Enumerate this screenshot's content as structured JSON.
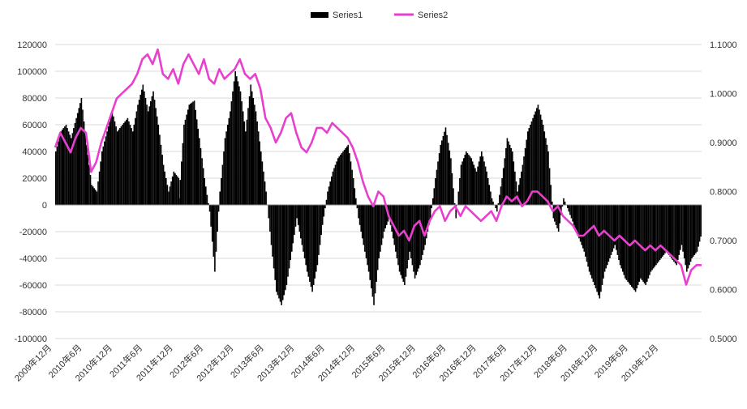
{
  "chart_data": {
    "type": "bar+line",
    "title": "",
    "legend": {
      "position": "top-center",
      "items": [
        {
          "name": "Series1",
          "kind": "bar",
          "color": "#000000"
        },
        {
          "name": "Series2",
          "kind": "line",
          "color": "#e83fce"
        }
      ]
    },
    "x_tick_labels": [
      "2009年12月",
      "2010年6月",
      "2010年12月",
      "2011年6月",
      "2011年12月",
      "2012年6月",
      "2012年12月",
      "2013年6月",
      "2013年12月",
      "2014年6月",
      "2014年12月",
      "2015年6月",
      "2015年12月",
      "2016年6月",
      "2016年12月",
      "2017年6月",
      "2017年12月",
      "2018年6月",
      "2018年12月",
      "2019年6月",
      "2019年12月"
    ],
    "x_range": [
      "2009-12",
      "2020-06"
    ],
    "y_left": {
      "min": -100000,
      "max": 120000,
      "step": 20000,
      "ticks": [
        "120000",
        "100000",
        "80000",
        "60000",
        "40000",
        "20000",
        "0",
        "-20000",
        "-40000",
        "-60000",
        "-80000",
        "-100000"
      ]
    },
    "y_right": {
      "min": 0.5,
      "max": 1.1,
      "step": 0.1,
      "ticks": [
        "1.1000",
        "1.0000",
        "0.9000",
        "0.8000",
        "0.7000",
        "0.6000",
        "0.5000"
      ]
    },
    "grid": true,
    "series": [
      {
        "name": "Series1",
        "axis": "left",
        "type": "bar",
        "color": "#000000",
        "points": [
          [
            "2009-12",
            40000
          ],
          [
            "2010-01",
            55000
          ],
          [
            "2010-02",
            60000
          ],
          [
            "2010-03",
            50000
          ],
          [
            "2010-04",
            65000
          ],
          [
            "2010-05",
            80000
          ],
          [
            "2010-06",
            45000
          ],
          [
            "2010-07",
            15000
          ],
          [
            "2010-08",
            10000
          ],
          [
            "2010-09",
            40000
          ],
          [
            "2010-10",
            55000
          ],
          [
            "2010-11",
            70000
          ],
          [
            "2010-12",
            55000
          ],
          [
            "2011-01",
            60000
          ],
          [
            "2011-02",
            65000
          ],
          [
            "2011-03",
            55000
          ],
          [
            "2011-04",
            75000
          ],
          [
            "2011-05",
            90000
          ],
          [
            "2011-06",
            70000
          ],
          [
            "2011-07",
            85000
          ],
          [
            "2011-08",
            60000
          ],
          [
            "2011-09",
            30000
          ],
          [
            "2011-10",
            10000
          ],
          [
            "2011-11",
            25000
          ],
          [
            "2011-12",
            20000
          ],
          [
            "2011-12",
            5000
          ],
          [
            "2012-01",
            60000
          ],
          [
            "2012-02",
            75000
          ],
          [
            "2012-03",
            78000
          ],
          [
            "2012-04",
            50000
          ],
          [
            "2012-05",
            20000
          ],
          [
            "2012-06",
            -5000
          ],
          [
            "2012-07",
            -50000
          ],
          [
            "2012-08",
            10000
          ],
          [
            "2012-09",
            50000
          ],
          [
            "2012-10",
            70000
          ],
          [
            "2012-11",
            100000
          ],
          [
            "2012-12",
            85000
          ],
          [
            "2013-01",
            55000
          ],
          [
            "2013-02",
            90000
          ],
          [
            "2013-03",
            70000
          ],
          [
            "2013-04",
            40000
          ],
          [
            "2013-05",
            10000
          ],
          [
            "2013-06",
            -30000
          ],
          [
            "2013-07",
            -65000
          ],
          [
            "2013-08",
            -75000
          ],
          [
            "2013-09",
            -60000
          ],
          [
            "2013-10",
            -35000
          ],
          [
            "2013-11",
            -10000
          ],
          [
            "2013-12",
            -30000
          ],
          [
            "2014-01",
            -50000
          ],
          [
            "2014-02",
            -65000
          ],
          [
            "2014-03",
            -45000
          ],
          [
            "2014-04",
            -15000
          ],
          [
            "2014-05",
            10000
          ],
          [
            "2014-06",
            25000
          ],
          [
            "2014-07",
            35000
          ],
          [
            "2014-08",
            40000
          ],
          [
            "2014-09",
            45000
          ],
          [
            "2014-10",
            20000
          ],
          [
            "2014-11",
            -10000
          ],
          [
            "2014-12",
            -30000
          ],
          [
            "2015-01",
            -50000
          ],
          [
            "2015-02",
            -75000
          ],
          [
            "2015-03",
            -40000
          ],
          [
            "2015-04",
            -20000
          ],
          [
            "2015-05",
            -10000
          ],
          [
            "2015-06",
            -30000
          ],
          [
            "2015-07",
            -50000
          ],
          [
            "2015-08",
            -60000
          ],
          [
            "2015-09",
            -35000
          ],
          [
            "2015-10",
            -55000
          ],
          [
            "2015-11",
            -45000
          ],
          [
            "2015-12",
            -30000
          ],
          [
            "2016-01",
            -10000
          ],
          [
            "2016-02",
            20000
          ],
          [
            "2016-03",
            45000
          ],
          [
            "2016-04",
            58000
          ],
          [
            "2016-05",
            35000
          ],
          [
            "2016-06",
            -10000
          ],
          [
            "2016-07",
            30000
          ],
          [
            "2016-08",
            40000
          ],
          [
            "2016-09",
            35000
          ],
          [
            "2016-10",
            25000
          ],
          [
            "2016-11",
            40000
          ],
          [
            "2016-12",
            25000
          ],
          [
            "2017-01",
            5000
          ],
          [
            "2017-02",
            -5000
          ],
          [
            "2017-03",
            20000
          ],
          [
            "2017-04",
            50000
          ],
          [
            "2017-05",
            40000
          ],
          [
            "2017-06",
            10000
          ],
          [
            "2017-07",
            30000
          ],
          [
            "2017-08",
            55000
          ],
          [
            "2017-09",
            65000
          ],
          [
            "2017-10",
            75000
          ],
          [
            "2017-11",
            60000
          ],
          [
            "2017-12",
            40000
          ],
          [
            "2018-01",
            -10000
          ],
          [
            "2018-02",
            -20000
          ],
          [
            "2018-03",
            5000
          ],
          [
            "2018-04",
            -5000
          ],
          [
            "2018-05",
            -15000
          ],
          [
            "2018-06",
            -25000
          ],
          [
            "2018-07",
            -35000
          ],
          [
            "2018-08",
            -50000
          ],
          [
            "2018-09",
            -60000
          ],
          [
            "2018-10",
            -70000
          ],
          [
            "2018-11",
            -50000
          ],
          [
            "2018-12",
            -40000
          ],
          [
            "2019-01",
            -30000
          ],
          [
            "2019-02",
            -45000
          ],
          [
            "2019-03",
            -55000
          ],
          [
            "2019-04",
            -60000
          ],
          [
            "2019-05",
            -65000
          ],
          [
            "2019-06",
            -55000
          ],
          [
            "2019-07",
            -60000
          ],
          [
            "2019-08",
            -50000
          ],
          [
            "2019-09",
            -45000
          ],
          [
            "2019-10",
            -40000
          ],
          [
            "2019-11",
            -35000
          ],
          [
            "2019-12",
            -40000
          ],
          [
            "2020-01",
            -45000
          ],
          [
            "2020-02",
            -30000
          ],
          [
            "2020-03",
            -50000
          ],
          [
            "2020-04",
            -40000
          ],
          [
            "2020-05",
            -35000
          ],
          [
            "2020-06",
            -20000
          ]
        ]
      },
      {
        "name": "Series2",
        "axis": "right",
        "type": "line",
        "color": "#e83fce",
        "points": [
          [
            "2009-12",
            0.89
          ],
          [
            "2010-01",
            0.92
          ],
          [
            "2010-02",
            0.9
          ],
          [
            "2010-03",
            0.88
          ],
          [
            "2010-04",
            0.91
          ],
          [
            "2010-05",
            0.93
          ],
          [
            "2010-06",
            0.92
          ],
          [
            "2010-07",
            0.84
          ],
          [
            "2010-08",
            0.86
          ],
          [
            "2010-09",
            0.9
          ],
          [
            "2010-10",
            0.93
          ],
          [
            "2010-11",
            0.96
          ],
          [
            "2010-12",
            0.99
          ],
          [
            "2011-01",
            1.0
          ],
          [
            "2011-02",
            1.01
          ],
          [
            "2011-03",
            1.02
          ],
          [
            "2011-04",
            1.04
          ],
          [
            "2011-05",
            1.07
          ],
          [
            "2011-06",
            1.08
          ],
          [
            "2011-07",
            1.06
          ],
          [
            "2011-08",
            1.09
          ],
          [
            "2011-09",
            1.04
          ],
          [
            "2011-10",
            1.03
          ],
          [
            "2011-11",
            1.05
          ],
          [
            "2011-12",
            1.02
          ],
          [
            "2012-01",
            1.06
          ],
          [
            "2012-02",
            1.08
          ],
          [
            "2012-03",
            1.06
          ],
          [
            "2012-04",
            1.04
          ],
          [
            "2012-05",
            1.07
          ],
          [
            "2012-06",
            1.03
          ],
          [
            "2012-07",
            1.02
          ],
          [
            "2012-08",
            1.05
          ],
          [
            "2012-09",
            1.03
          ],
          [
            "2012-10",
            1.04
          ],
          [
            "2012-11",
            1.05
          ],
          [
            "2012-12",
            1.07
          ],
          [
            "2013-01",
            1.04
          ],
          [
            "2013-02",
            1.03
          ],
          [
            "2013-03",
            1.04
          ],
          [
            "2013-04",
            1.01
          ],
          [
            "2013-05",
            0.95
          ],
          [
            "2013-06",
            0.93
          ],
          [
            "2013-07",
            0.9
          ],
          [
            "2013-08",
            0.92
          ],
          [
            "2013-09",
            0.95
          ],
          [
            "2013-10",
            0.96
          ],
          [
            "2013-11",
            0.92
          ],
          [
            "2013-12",
            0.89
          ],
          [
            "2014-01",
            0.88
          ],
          [
            "2014-02",
            0.9
          ],
          [
            "2014-03",
            0.93
          ],
          [
            "2014-04",
            0.93
          ],
          [
            "2014-05",
            0.92
          ],
          [
            "2014-06",
            0.94
          ],
          [
            "2014-07",
            0.93
          ],
          [
            "2014-08",
            0.92
          ],
          [
            "2014-09",
            0.91
          ],
          [
            "2014-10",
            0.89
          ],
          [
            "2014-11",
            0.86
          ],
          [
            "2014-12",
            0.82
          ],
          [
            "2015-01",
            0.79
          ],
          [
            "2015-02",
            0.77
          ],
          [
            "2015-03",
            0.8
          ],
          [
            "2015-04",
            0.79
          ],
          [
            "2015-05",
            0.75
          ],
          [
            "2015-06",
            0.73
          ],
          [
            "2015-07",
            0.71
          ],
          [
            "2015-08",
            0.72
          ],
          [
            "2015-09",
            0.7
          ],
          [
            "2015-10",
            0.73
          ],
          [
            "2015-11",
            0.74
          ],
          [
            "2015-12",
            0.71
          ],
          [
            "2016-01",
            0.74
          ],
          [
            "2016-02",
            0.76
          ],
          [
            "2016-03",
            0.77
          ],
          [
            "2016-04",
            0.74
          ],
          [
            "2016-05",
            0.76
          ],
          [
            "2016-06",
            0.77
          ],
          [
            "2016-07",
            0.75
          ],
          [
            "2016-08",
            0.77
          ],
          [
            "2016-09",
            0.76
          ],
          [
            "2016-10",
            0.75
          ],
          [
            "2016-11",
            0.74
          ],
          [
            "2016-12",
            0.75
          ],
          [
            "2017-01",
            0.76
          ],
          [
            "2017-02",
            0.74
          ],
          [
            "2017-03",
            0.77
          ],
          [
            "2017-04",
            0.79
          ],
          [
            "2017-05",
            0.78
          ],
          [
            "2017-06",
            0.79
          ],
          [
            "2017-07",
            0.77
          ],
          [
            "2017-08",
            0.78
          ],
          [
            "2017-09",
            0.8
          ],
          [
            "2017-10",
            0.8
          ],
          [
            "2017-11",
            0.79
          ],
          [
            "2017-12",
            0.78
          ],
          [
            "2018-01",
            0.76
          ],
          [
            "2018-02",
            0.77
          ],
          [
            "2018-03",
            0.75
          ],
          [
            "2018-04",
            0.74
          ],
          [
            "2018-05",
            0.73
          ],
          [
            "2018-06",
            0.71
          ],
          [
            "2018-07",
            0.71
          ],
          [
            "2018-08",
            0.72
          ],
          [
            "2018-09",
            0.73
          ],
          [
            "2018-10",
            0.71
          ],
          [
            "2018-11",
            0.72
          ],
          [
            "2018-12",
            0.71
          ],
          [
            "2019-01",
            0.7
          ],
          [
            "2019-02",
            0.71
          ],
          [
            "2019-03",
            0.7
          ],
          [
            "2019-04",
            0.69
          ],
          [
            "2019-05",
            0.7
          ],
          [
            "2019-06",
            0.69
          ],
          [
            "2019-07",
            0.68
          ],
          [
            "2019-08",
            0.69
          ],
          [
            "2019-09",
            0.68
          ],
          [
            "2019-10",
            0.69
          ],
          [
            "2019-11",
            0.68
          ],
          [
            "2019-12",
            0.67
          ],
          [
            "2020-01",
            0.66
          ],
          [
            "2020-02",
            0.65
          ],
          [
            "2020-03",
            0.61
          ],
          [
            "2020-04",
            0.64
          ],
          [
            "2020-05",
            0.65
          ],
          [
            "2020-06",
            0.65
          ]
        ]
      }
    ]
  }
}
